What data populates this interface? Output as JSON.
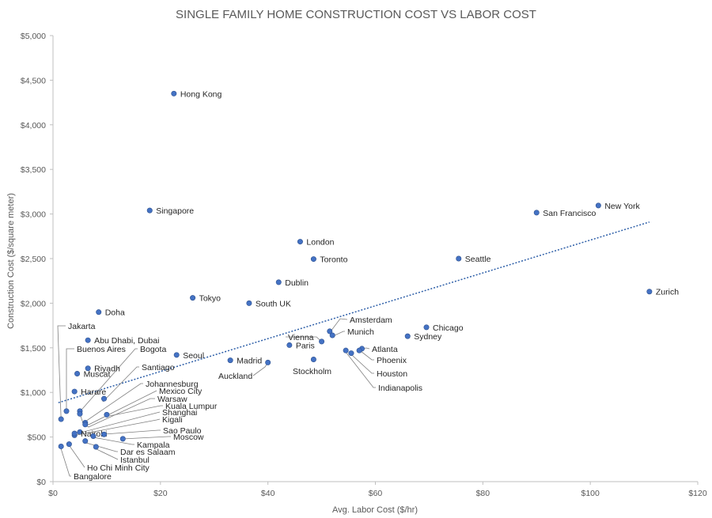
{
  "chart_data": {
    "type": "scatter",
    "title": "SINGLE FAMILY HOME CONSTRUCTION COST VS LABOR COST",
    "xlabel": "Avg. Labor Cost ($/hr)",
    "ylabel": "Construction Cost ($/square meter)",
    "xlim": [
      0,
      120
    ],
    "ylim": [
      0,
      5000
    ],
    "x_ticks": [
      0,
      20,
      40,
      60,
      80,
      100,
      120
    ],
    "x_tick_labels": [
      "$0",
      "$20",
      "$40",
      "$60",
      "$80",
      "$100",
      "$120"
    ],
    "y_ticks": [
      0,
      500,
      1000,
      1500,
      2000,
      2500,
      3000,
      3500,
      4000,
      4500,
      5000
    ],
    "y_tick_labels": [
      "$0",
      "$500",
      "$1,000",
      "$1,500",
      "$2,000",
      "$2,500",
      "$3,000",
      "$3,500",
      "$4,000",
      "$4,500",
      "$5,000"
    ],
    "grid": false,
    "legend": "none",
    "trendline": {
      "type": "linear",
      "x": [
        1,
        111
      ],
      "y": [
        885,
        2910
      ]
    },
    "colors": {
      "marker": "#4472c4",
      "trendline": "#2e5fa8"
    },
    "points": [
      {
        "name": "Hong Kong",
        "x": 22.5,
        "y": 4350
      },
      {
        "name": "Singapore",
        "x": 18,
        "y": 3040
      },
      {
        "name": "London",
        "x": 46,
        "y": 2690
      },
      {
        "name": "Toronto",
        "x": 48.5,
        "y": 2495
      },
      {
        "name": "Dublin",
        "x": 42,
        "y": 2235
      },
      {
        "name": "Tokyo",
        "x": 26,
        "y": 2060
      },
      {
        "name": "South UK",
        "x": 36.5,
        "y": 2000
      },
      {
        "name": "Doha",
        "x": 8.5,
        "y": 1900
      },
      {
        "name": "Seattle",
        "x": 75.5,
        "y": 2500
      },
      {
        "name": "San Francisco",
        "x": 90,
        "y": 3015
      },
      {
        "name": "New York",
        "x": 101.5,
        "y": 3095
      },
      {
        "name": "Zurich",
        "x": 111,
        "y": 2130
      },
      {
        "name": "Amsterdam",
        "x": 51.5,
        "y": 1685
      },
      {
        "name": "Munich",
        "x": 52,
        "y": 1640
      },
      {
        "name": "Vienna",
        "x": 50,
        "y": 1570
      },
      {
        "name": "Paris",
        "x": 44,
        "y": 1530
      },
      {
        "name": "Chicago",
        "x": 69.5,
        "y": 1730
      },
      {
        "name": "Sydney",
        "x": 66,
        "y": 1630
      },
      {
        "name": "Atlanta",
        "x": 57.5,
        "y": 1490
      },
      {
        "name": "Phoenix",
        "x": 57,
        "y": 1470
      },
      {
        "name": "Houston",
        "x": 55.5,
        "y": 1440
      },
      {
        "name": "Indianapolis",
        "x": 54.5,
        "y": 1470
      },
      {
        "name": "Stockholm",
        "x": 48.5,
        "y": 1370
      },
      {
        "name": "Madrid",
        "x": 33,
        "y": 1360
      },
      {
        "name": "Auckland",
        "x": 40,
        "y": 1335
      },
      {
        "name": "Seoul",
        "x": 23,
        "y": 1420
      },
      {
        "name": "Jakarta",
        "x": 1.5,
        "y": 700
      },
      {
        "name": "Abu Dhabi, Dubai",
        "x": 6.5,
        "y": 1585
      },
      {
        "name": "Buenos Aires",
        "x": 2.5,
        "y": 790
      },
      {
        "name": "Bogota",
        "x": 5,
        "y": 790
      },
      {
        "name": "Riyadh",
        "x": 6.5,
        "y": 1270
      },
      {
        "name": "Muscat",
        "x": 4.5,
        "y": 1210
      },
      {
        "name": "Santiago",
        "x": 9.5,
        "y": 930
      },
      {
        "name": "Harare",
        "x": 4,
        "y": 1010
      },
      {
        "name": "Johannesburg",
        "x": 5,
        "y": 760
      },
      {
        "name": "Mexico City",
        "x": 6,
        "y": 660
      },
      {
        "name": "Warsaw",
        "x": 6,
        "y": 640
      },
      {
        "name": "Kuala Lumpur",
        "x": 10,
        "y": 750
      },
      {
        "name": "Shanghai",
        "x": 5,
        "y": 555
      },
      {
        "name": "Kigali",
        "x": 4,
        "y": 520
      },
      {
        "name": "Nairobi",
        "x": 4,
        "y": 540
      },
      {
        "name": "Sao Paulo",
        "x": 9.5,
        "y": 530
      },
      {
        "name": "Moscow",
        "x": 13,
        "y": 480
      },
      {
        "name": "Kampala",
        "x": 7.5,
        "y": 510
      },
      {
        "name": "Dar es Salaam",
        "x": 6,
        "y": 455
      },
      {
        "name": "Istanbul",
        "x": 8,
        "y": 390
      },
      {
        "name": "Ho Chi Minh City",
        "x": 3,
        "y": 420
      },
      {
        "name": "Bangalore",
        "x": 1.5,
        "y": 395
      }
    ]
  }
}
